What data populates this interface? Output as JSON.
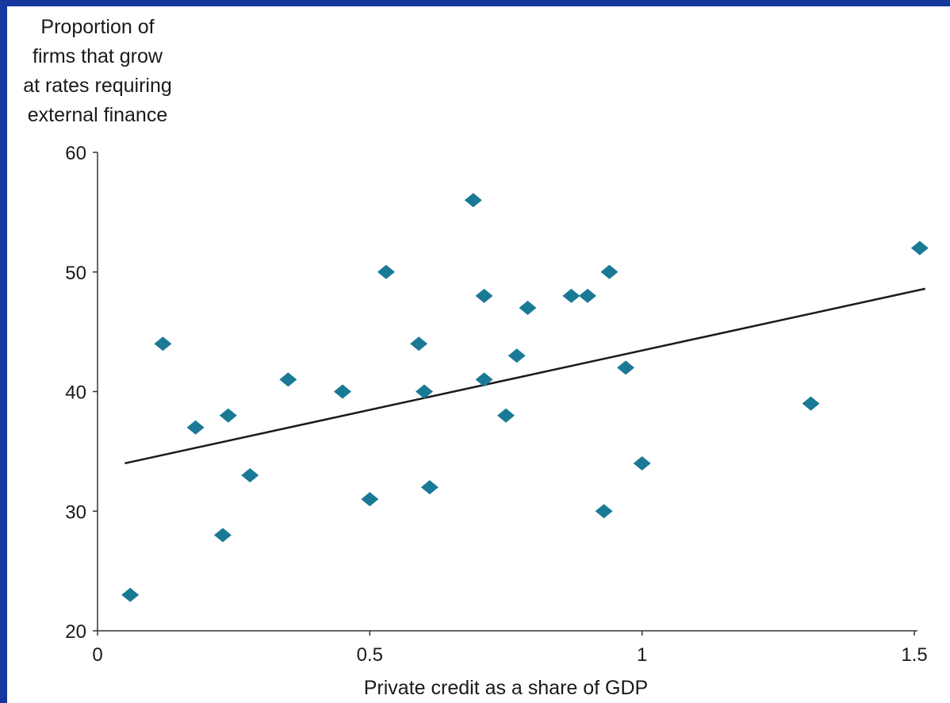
{
  "chart_data": {
    "type": "scatter",
    "title": "",
    "ylabel_lines": [
      "Proportion of",
      "firms that grow",
      "at rates requiring",
      "external finance"
    ],
    "xlabel": "Private credit as a share of GDP",
    "xlim": [
      0,
      1.5
    ],
    "ylim": [
      20,
      60
    ],
    "xticks": [
      0,
      0.5,
      1,
      1.5
    ],
    "xtick_labels": [
      "0",
      "0.5",
      "1",
      "1.5"
    ],
    "yticks": [
      20,
      30,
      40,
      50,
      60
    ],
    "ytick_labels": [
      "20",
      "30",
      "40",
      "50",
      "60"
    ],
    "grid": false,
    "marker": "diamond",
    "marker_color": "#1a7a96",
    "points": [
      {
        "x": 0.06,
        "y": 23
      },
      {
        "x": 0.12,
        "y": 44
      },
      {
        "x": 0.18,
        "y": 37
      },
      {
        "x": 0.23,
        "y": 28
      },
      {
        "x": 0.24,
        "y": 38
      },
      {
        "x": 0.28,
        "y": 33
      },
      {
        "x": 0.35,
        "y": 41
      },
      {
        "x": 0.45,
        "y": 40
      },
      {
        "x": 0.5,
        "y": 31
      },
      {
        "x": 0.53,
        "y": 50
      },
      {
        "x": 0.59,
        "y": 44
      },
      {
        "x": 0.6,
        "y": 40
      },
      {
        "x": 0.61,
        "y": 32
      },
      {
        "x": 0.69,
        "y": 56
      },
      {
        "x": 0.71,
        "y": 48
      },
      {
        "x": 0.71,
        "y": 41
      },
      {
        "x": 0.75,
        "y": 38
      },
      {
        "x": 0.77,
        "y": 43
      },
      {
        "x": 0.79,
        "y": 47
      },
      {
        "x": 0.87,
        "y": 48
      },
      {
        "x": 0.9,
        "y": 48
      },
      {
        "x": 0.93,
        "y": 30
      },
      {
        "x": 0.94,
        "y": 50
      },
      {
        "x": 0.97,
        "y": 42
      },
      {
        "x": 1.0,
        "y": 34
      },
      {
        "x": 1.31,
        "y": 39
      },
      {
        "x": 1.51,
        "y": 52
      }
    ],
    "trend_line": {
      "x": [
        0.05,
        1.52
      ],
      "y": [
        34.0,
        48.6
      ],
      "color": "#1a1a1a"
    }
  }
}
